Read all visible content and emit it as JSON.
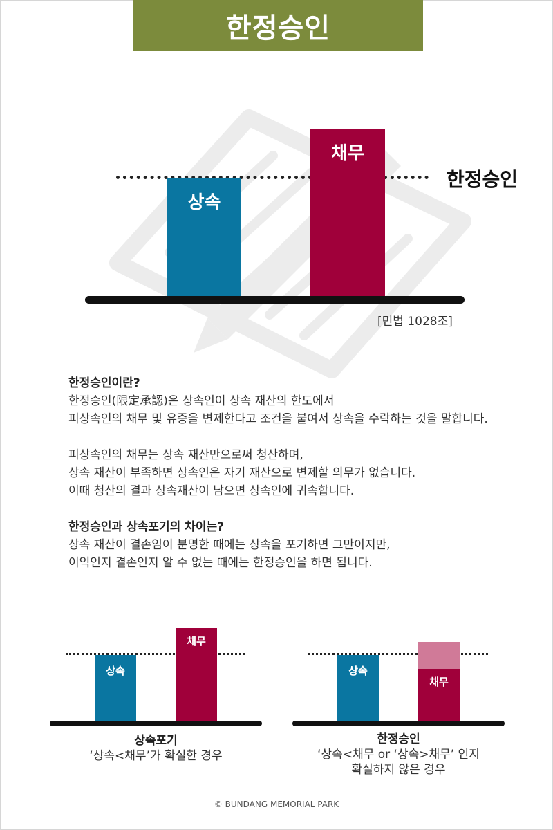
{
  "title": "한정승인",
  "main_diagram": {
    "inheritance_label": "상속",
    "debt_label": "채무",
    "line_label": "한정승인",
    "source": "[민법 1028조]",
    "colors": {
      "inheritance": "#0a76a1",
      "debt": "#a0003a"
    }
  },
  "content": {
    "q1": "한정승인이란?",
    "p1_line1": "한정승인(限定承認)은 상속인이 상속 재산의 한도에서",
    "p1_line2": "피상속인의 채무 및 유증을 변제한다고 조건을 붙여서 상속을 수락하는 것을 말합니다.",
    "p2_line1": "피상속인의 채무는 상속 재산만으로써 청산하며,",
    "p2_line2": "상속 재산이 부족하면 상속인은 자기 재산으로 변제할 의무가 없습니다.",
    "p2_line3": "이때 청산의 결과 상속재산이 남으면 상속인에 귀속합니다.",
    "q2": "한정승인과 상속포기의 차이는?",
    "p3_line1": "상속 재산이 결손임이 분명한 때에는 상속을 포기하면 그만이지만,",
    "p3_line2": "이익인지 결손인지 알 수 없는 때에는 한정승인을 하면 됩니다."
  },
  "left_diagram": {
    "inheritance_label": "상속",
    "debt_label": "채무",
    "caption_title": "상속포기",
    "caption_line1": "‘상속<채무’가 확실한 경우"
  },
  "right_diagram": {
    "inheritance_label": "상속",
    "debt_label": "채무",
    "caption_title": "한정승인",
    "caption_line1": "‘상속<채무 or ‘상속>채무’ 인지",
    "caption_line2": "확실하지 않은 경우",
    "colors": {
      "debt_uncertain": "#d07a98"
    }
  },
  "copyright": "© BUNDANG MEMORIAL PARK"
}
